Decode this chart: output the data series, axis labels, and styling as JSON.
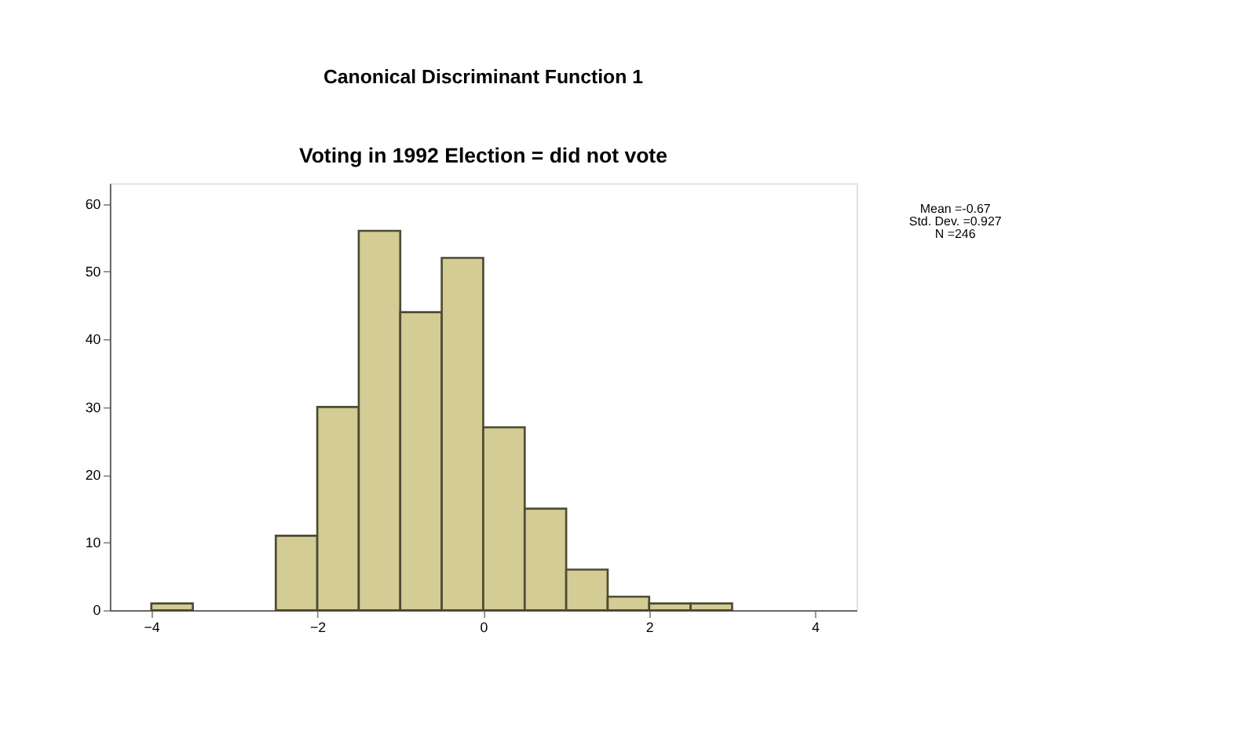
{
  "chart_data": {
    "type": "histogram",
    "title": "Canonical Discriminant Function 1",
    "subtitle": "Voting in 1992 Election = did not vote",
    "bins": [
      -4,
      -3.5,
      -3,
      -2.5,
      -2,
      -1.5,
      -1,
      -0.5,
      0,
      0.5,
      1,
      1.5,
      2,
      2.5,
      3
    ],
    "values": [
      1,
      0,
      0,
      11,
      30,
      56,
      44,
      52,
      27,
      15,
      6,
      2,
      1,
      1
    ],
    "color": "#d3cc95",
    "xlim": [
      -4.5,
      4.5
    ],
    "xticks": [
      -4,
      -2,
      0,
      2,
      4
    ],
    "ylim": [
      0,
      63
    ],
    "yticks": [
      0,
      10,
      20,
      30,
      40,
      50,
      60
    ],
    "grid": false,
    "annotations": [
      "Mean =-0.67",
      "Std. Dev. =0.927",
      "N =246"
    ]
  }
}
